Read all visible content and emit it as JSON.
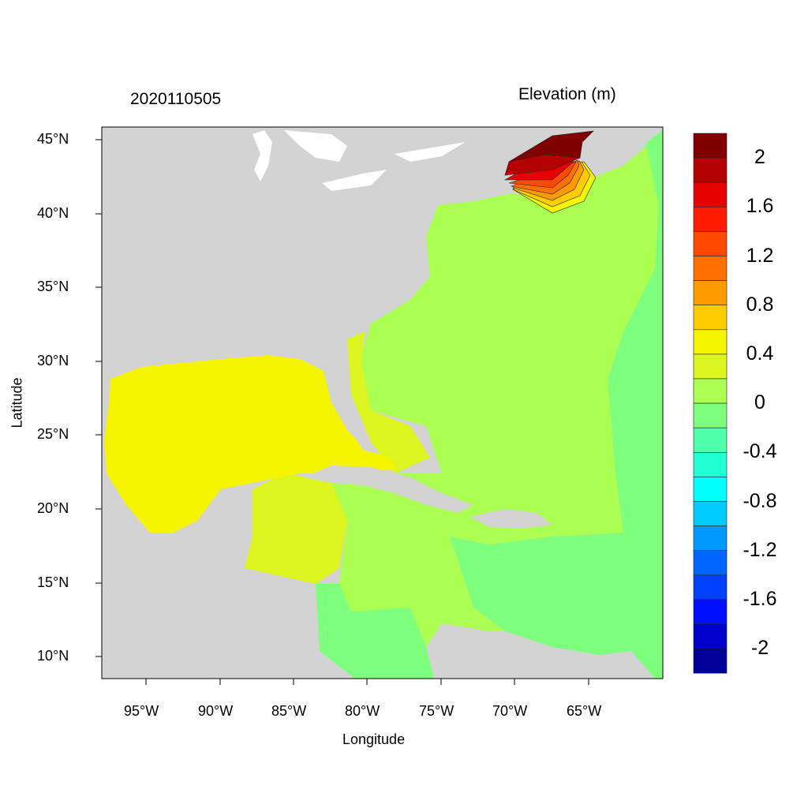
{
  "title_left": "2020110505",
  "title_right": "Elevation (m)",
  "xlabel": "Longitude",
  "ylabel": "Latitude",
  "x_ticks": [
    "95°W",
    "90°W",
    "85°W",
    "80°W",
    "75°W",
    "70°W",
    "65°W"
  ],
  "y_ticks": [
    "45°N",
    "40°N",
    "35°N",
    "30°N",
    "25°N",
    "20°N",
    "15°N",
    "10°N"
  ],
  "extent": {
    "lon": [
      -98,
      -60
    ],
    "lat": [
      8.5,
      45.8
    ]
  },
  "colorbar": {
    "labels": [
      "2",
      "1.6",
      "1.2",
      "0.8",
      "0.4",
      "0",
      "-0.4",
      "-0.8",
      "-1.2",
      "-1.6",
      "-2"
    ],
    "colors": [
      "#800000",
      "#b40000",
      "#e60000",
      "#ff1a00",
      "#ff4800",
      "#ff7000",
      "#ff9a00",
      "#ffcc00",
      "#f5f500",
      "#dcf51e",
      "#aaff50",
      "#7dff7d",
      "#50ffaa",
      "#20ffd5",
      "#00ffff",
      "#00ccff",
      "#0099ff",
      "#0066ff",
      "#0040ff",
      "#0010ff",
      "#0000cc",
      "#000099"
    ]
  },
  "colors": {
    "land": "#d3d3d3",
    "lakes": "#ffffff"
  }
}
